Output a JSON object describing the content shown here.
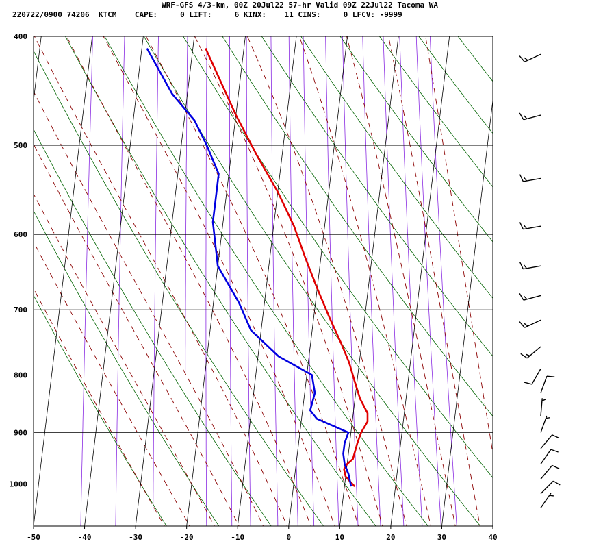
{
  "header": {
    "title": "WRF-GFS 4/3-km, 00Z 20Jul22 57-hr Valid 09Z 22Jul22 Tacoma WA",
    "station": "220722/0900 74206  KTCM",
    "cape_label": "CAPE:",
    "cape": "0",
    "lift_label": "LIFT:",
    "lift": "6",
    "kinx_label": "KINX:",
    "kinx": "11",
    "cins_label": "CINS:",
    "cins": "0",
    "lfcv_label": "LFCV:",
    "lfcv": "-9999"
  },
  "colors": {
    "temperature": "#e00000",
    "dewpoint": "#0000e0",
    "isotherm": "#000000",
    "isobar": "#000000",
    "dry_adiabat": "#006400",
    "moist_adiabat": "#8b0000",
    "mixing_ratio": "#8a2be2",
    "wind_barb": "#000000"
  },
  "chart_data": {
    "type": "line",
    "title": "WRF-GFS 4/3-km, 00Z 20Jul22 57-hr Valid 09Z 22Jul22 Tacoma WA",
    "xlabel": "",
    "ylabel": "",
    "x_unit": "deg C",
    "y_unit": "hPa",
    "y_scale": "log",
    "y_reversed": true,
    "xlim": [
      -50,
      40
    ],
    "ylim": [
      1090,
      400
    ],
    "grid": true,
    "x_ticks": [
      -50,
      -40,
      -30,
      -20,
      -10,
      0,
      10,
      20,
      30,
      40
    ],
    "y_ticks": [
      400,
      500,
      600,
      700,
      800,
      900,
      1000
    ],
    "series": [
      {
        "key": "temperature",
        "color": "#e00000",
        "points": [
          [
            -27.5,
            410
          ],
          [
            -20,
            470
          ],
          [
            -15,
            510
          ],
          [
            -10,
            550
          ],
          [
            -6,
            590
          ],
          [
            -3,
            630
          ],
          [
            0,
            670
          ],
          [
            3,
            710
          ],
          [
            6,
            750
          ],
          [
            8,
            780
          ],
          [
            9.5,
            810
          ],
          [
            11,
            840
          ],
          [
            12.8,
            865
          ],
          [
            13,
            880
          ],
          [
            12,
            900
          ],
          [
            11.5,
            920
          ],
          [
            11,
            950
          ],
          [
            10,
            960
          ],
          [
            9.5,
            970
          ],
          [
            10,
            985
          ],
          [
            12,
            1005
          ]
        ]
      },
      {
        "key": "dewpoint",
        "color": "#0000e0",
        "points": [
          [
            -39,
            410
          ],
          [
            -33,
            450
          ],
          [
            -28,
            475
          ],
          [
            -25,
            500
          ],
          [
            -22,
            530
          ],
          [
            -22,
            560
          ],
          [
            -22,
            585
          ],
          [
            -20,
            640
          ],
          [
            -15,
            690
          ],
          [
            -12,
            730
          ],
          [
            -6,
            770
          ],
          [
            1,
            800
          ],
          [
            2,
            830
          ],
          [
            1.5,
            860
          ],
          [
            3,
            875
          ],
          [
            9.5,
            900
          ],
          [
            9,
            920
          ],
          [
            9,
            940
          ],
          [
            9.5,
            960
          ],
          [
            10.5,
            980
          ],
          [
            11.3,
            1005
          ]
        ]
      }
    ],
    "wind_barbs": [
      {
        "p": 415,
        "speed_kt": 15,
        "dir_deg": 245
      },
      {
        "p": 470,
        "speed_kt": 15,
        "dir_deg": 255
      },
      {
        "p": 535,
        "speed_kt": 15,
        "dir_deg": 260
      },
      {
        "p": 590,
        "speed_kt": 15,
        "dir_deg": 260
      },
      {
        "p": 640,
        "speed_kt": 15,
        "dir_deg": 260
      },
      {
        "p": 680,
        "speed_kt": 15,
        "dir_deg": 255
      },
      {
        "p": 715,
        "speed_kt": 15,
        "dir_deg": 245
      },
      {
        "p": 755,
        "speed_kt": 15,
        "dir_deg": 230
      },
      {
        "p": 790,
        "speed_kt": 10,
        "dir_deg": 210
      },
      {
        "p": 830,
        "speed_kt": 10,
        "dir_deg": 20
      },
      {
        "p": 870,
        "speed_kt": 5,
        "dir_deg": 5
      },
      {
        "p": 900,
        "speed_kt": 5,
        "dir_deg": 20
      },
      {
        "p": 930,
        "speed_kt": 10,
        "dir_deg": 40
      },
      {
        "p": 960,
        "speed_kt": 10,
        "dir_deg": 35
      },
      {
        "p": 990,
        "speed_kt": 10,
        "dir_deg": 40
      },
      {
        "p": 1020,
        "speed_kt": 10,
        "dir_deg": 45
      },
      {
        "p": 1050,
        "speed_kt": 5,
        "dir_deg": 35
      }
    ]
  }
}
